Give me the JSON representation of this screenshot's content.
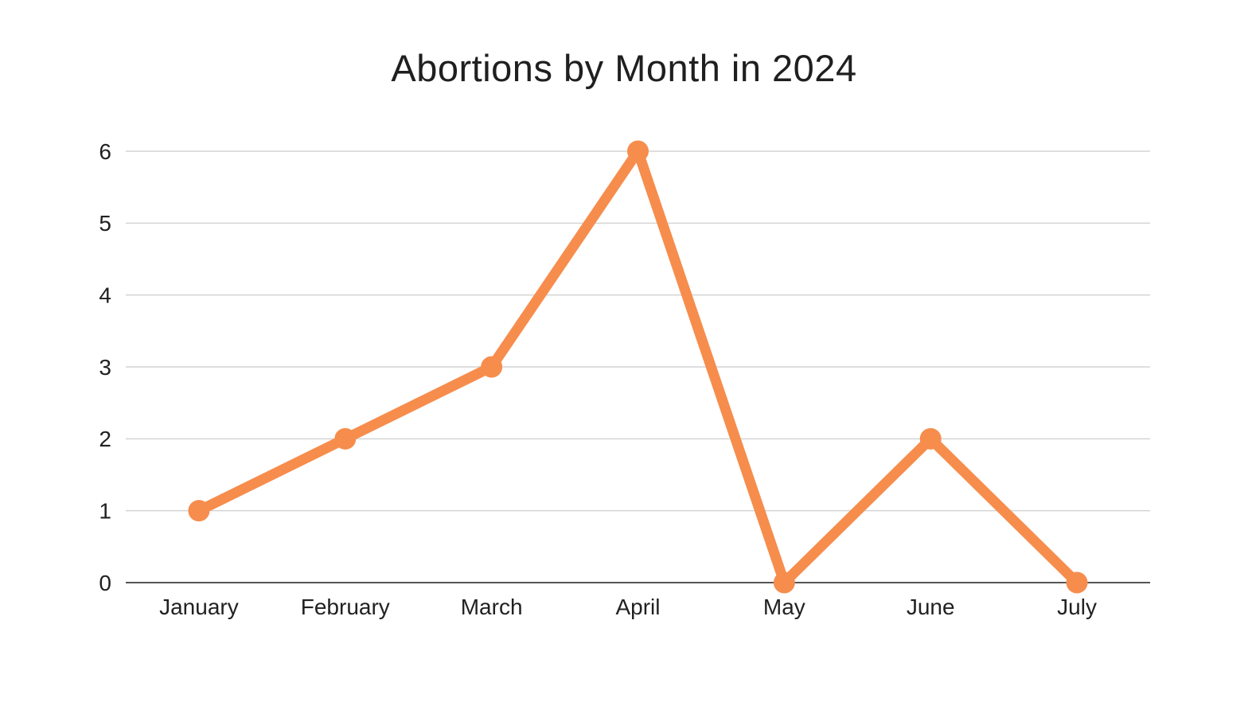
{
  "chart": {
    "title": "Abortions by Month in 2024"
  },
  "chart_data": {
    "type": "line",
    "title": "Abortions by Month in 2024",
    "categories": [
      "January",
      "February",
      "March",
      "April",
      "May",
      "June",
      "July"
    ],
    "series": [
      {
        "name": "Abortions",
        "values": [
          1,
          2,
          3,
          6,
          0,
          2,
          0
        ]
      }
    ],
    "values": [
      1,
      2,
      3,
      6,
      0,
      2,
      0
    ],
    "xlabel": "",
    "ylabel": "",
    "ylim": [
      0,
      6
    ],
    "yticks": [
      0,
      1,
      2,
      3,
      4,
      5,
      6
    ],
    "grid": true,
    "legend_position": "none",
    "marker": "circle"
  },
  "colors": {
    "line": "#F68D4D",
    "marker": "#F68D4D",
    "grid": "#D4D4D4",
    "axis": "#555555",
    "text": "#212121",
    "title_text": "#1f1f1f",
    "background": "#FFFFFF"
  }
}
